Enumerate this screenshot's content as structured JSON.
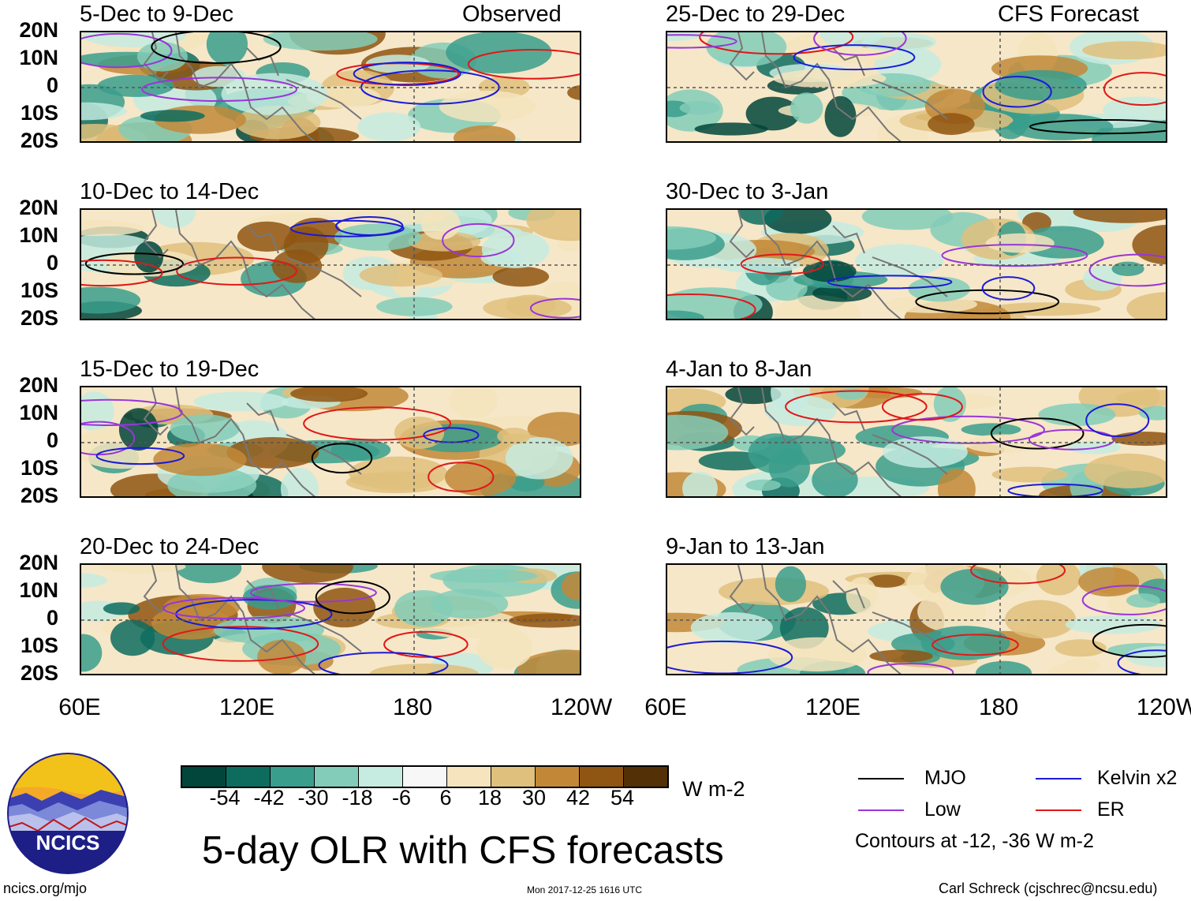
{
  "headers": {
    "observed": "Observed",
    "forecast": "CFS Forecast"
  },
  "lat_labels": [
    "20N",
    "10N",
    "0",
    "10S",
    "20S"
  ],
  "lon_labels": [
    "60E",
    "120E",
    "180",
    "120W"
  ],
  "observed_panels": [
    {
      "title": "5-Dec to 9-Dec"
    },
    {
      "title": "10-Dec to 14-Dec"
    },
    {
      "title": "15-Dec to 19-Dec"
    },
    {
      "title": "20-Dec to 24-Dec"
    }
  ],
  "forecast_panels": [
    {
      "title": "25-Dec to 29-Dec"
    },
    {
      "title": "30-Dec to 3-Jan"
    },
    {
      "title": "4-Jan to 8-Jan"
    },
    {
      "title": "9-Jan to 13-Jan"
    }
  ],
  "colorbar": {
    "colors": [
      "#01453b",
      "#0e6c5f",
      "#3a9e8c",
      "#82ccb9",
      "#c6ebe0",
      "#f7f7f7",
      "#f5e4bd",
      "#dfc07c",
      "#c28838",
      "#8f5512",
      "#543006"
    ],
    "ticks": [
      "-54",
      "-42",
      "-30",
      "-18",
      "-6",
      "6",
      "18",
      "30",
      "42",
      "54"
    ],
    "units": "W m-2"
  },
  "legend": {
    "items": [
      {
        "label": "MJO",
        "color": "#000000"
      },
      {
        "label": "Kelvin x2",
        "color": "#1a1ad8"
      },
      {
        "label": "Low",
        "color": "#9a35d8"
      },
      {
        "label": "ER",
        "color": "#e01818"
      }
    ],
    "contours_note": "Contours at -12, -36 W m-2"
  },
  "main_title": "5-day OLR with CFS forecasts",
  "logo_text": "NCICS",
  "footer": {
    "url": "ncics.org/mjo",
    "timestamp": "Mon 2017-12-25 1616 UTC",
    "author": "Carl Schreck (cjschrec@ncsu.edu)"
  }
}
